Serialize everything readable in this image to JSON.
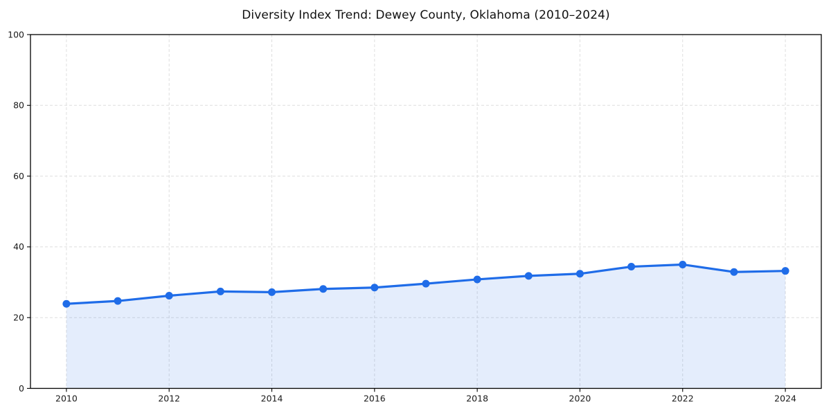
{
  "page": {
    "background": "#ffffff"
  },
  "chart_data": {
    "type": "area",
    "title": "Diversity Index Trend: Dewey County, Oklahoma (2010–2024)",
    "xlabel": "",
    "ylabel": "",
    "x": [
      2010,
      2011,
      2012,
      2013,
      2014,
      2015,
      2016,
      2017,
      2018,
      2019,
      2020,
      2021,
      2022,
      2023,
      2024
    ],
    "values": [
      23.9,
      24.7,
      26.2,
      27.4,
      27.2,
      28.1,
      28.5,
      29.6,
      30.8,
      31.8,
      32.4,
      34.4,
      35.0,
      32.9,
      33.2
    ],
    "xticks": [
      2010,
      2012,
      2014,
      2016,
      2018,
      2020,
      2022,
      2024
    ],
    "yticks": [
      0,
      20,
      40,
      60,
      80,
      100
    ],
    "xlim": [
      2009.3,
      2024.7
    ],
    "ylim": [
      0,
      100
    ],
    "grid": true,
    "grid_style": "dashed",
    "legend_position": "none",
    "line_color": "#1f6ce8",
    "fill_color": "#1f6ce8",
    "fill_opacity": 0.12,
    "marker": "circle",
    "marker_radius": 5.5,
    "line_width": 3.2,
    "grid_color": "#dedede",
    "axis_color": "#000000",
    "text_color": "#1a1a1a"
  }
}
